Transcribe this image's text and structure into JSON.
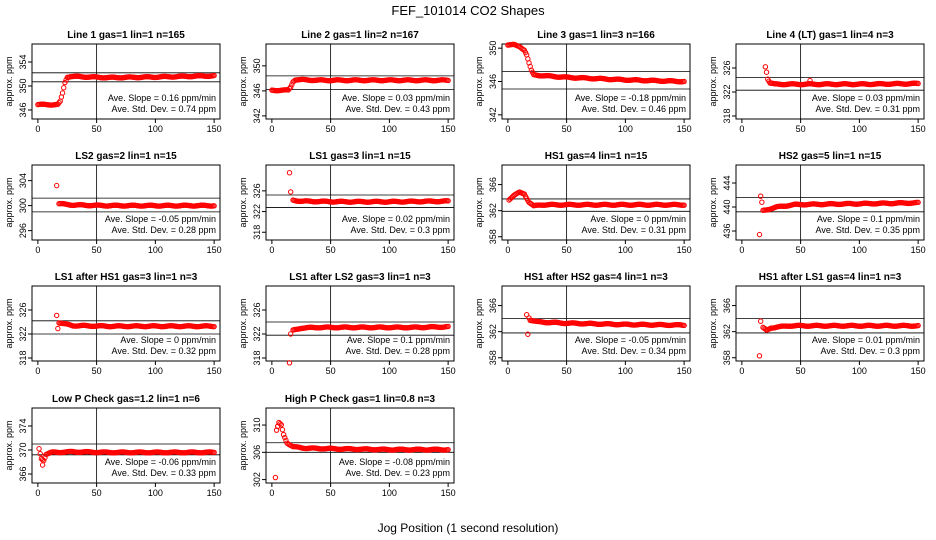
{
  "figure": {
    "title": "FEF_101014  CO2 Shapes",
    "xlabel": "Jog Position (1 second resolution)",
    "colors": {
      "points": "#ff0000",
      "axes": "#000000",
      "background": "#ffffff"
    }
  },
  "chart_data": [
    {
      "type": "scatter",
      "title": "Line 1 gas=1 lin=1 n=165",
      "ylabel": "approx. ppm",
      "xlim": [
        -5,
        155
      ],
      "ylim": [
        344.5,
        357
      ],
      "xticks": [
        0,
        50,
        100,
        150
      ],
      "yticks": [
        346,
        350,
        354
      ],
      "vline": 50,
      "hlines": [
        350.7,
        352.2
      ],
      "slope_text": "Ave. Slope = 0.16 ppm/min",
      "stddev_text": "Ave. Std. Dev. = 0.74 ppm",
      "shape": [
        [
          0,
          346.9
        ],
        [
          17,
          346.9
        ],
        [
          19,
          347.4
        ],
        [
          21,
          348.8
        ],
        [
          23,
          350.6
        ],
        [
          25,
          351.5
        ],
        [
          28,
          351.6
        ],
        [
          60,
          351.4
        ],
        [
          100,
          351.5
        ],
        [
          150,
          351.7
        ]
      ],
      "outliers": []
    },
    {
      "type": "scatter",
      "title": "Line 2 gas=1 lin=2 n=167",
      "ylabel": "approx. ppm",
      "xlim": [
        -5,
        155
      ],
      "ylim": [
        341.5,
        353.5
      ],
      "xticks": [
        0,
        50,
        100,
        150
      ],
      "yticks": [
        342,
        346,
        350
      ],
      "vline": 50,
      "hlines": [
        346.2,
        348.4
      ],
      "slope_text": "Ave. Slope = 0.03 ppm/min",
      "stddev_text": "Ave. Std. Dev. = 0.43 ppm",
      "shape": [
        [
          0,
          346.1
        ],
        [
          14,
          346.1
        ],
        [
          16,
          346.6
        ],
        [
          18,
          347.5
        ],
        [
          20,
          347.8
        ],
        [
          40,
          347.7
        ],
        [
          80,
          347.7
        ],
        [
          120,
          347.7
        ],
        [
          150,
          347.7
        ]
      ],
      "outliers": []
    },
    {
      "type": "scatter",
      "title": "Line 3 gas=1 lin=3 n=166",
      "ylabel": "approx. ppm",
      "xlim": [
        -5,
        155
      ],
      "ylim": [
        341.5,
        350.5
      ],
      "xticks": [
        0,
        50,
        100,
        150
      ],
      "yticks": [
        342,
        346,
        350
      ],
      "vline": 50,
      "hlines": [
        345.1,
        347.2
      ],
      "slope_text": "Ave. Slope = -0.18 ppm/min",
      "stddev_text": "Ave. Std. Dev. = 0.46 ppm",
      "shape": [
        [
          0,
          350.4
        ],
        [
          5,
          350.4
        ],
        [
          10,
          350.2
        ],
        [
          14,
          349.8
        ],
        [
          16,
          349.2
        ],
        [
          18,
          348.2
        ],
        [
          20,
          347.3
        ],
        [
          22,
          346.8
        ],
        [
          30,
          346.7
        ],
        [
          50,
          346.5
        ],
        [
          100,
          346.2
        ],
        [
          150,
          346.0
        ]
      ],
      "outliers": []
    },
    {
      "type": "scatter",
      "title": "Line 4 (LT) gas=1 lin=4 n=3",
      "ylabel": "approx. ppm",
      "xlim": [
        -5,
        155
      ],
      "ylim": [
        317.5,
        330
      ],
      "xticks": [
        0,
        50,
        100,
        150
      ],
      "yticks": [
        318,
        322,
        326
      ],
      "vline": 50,
      "hlines": [
        322.3,
        324.4
      ],
      "slope_text": "Ave. Slope = 0.03 ppm/min",
      "stddev_text": "Ave. Std. Dev. = 0.31 ppm",
      "shape": [
        [
          22,
          324.2
        ],
        [
          24,
          323.5
        ],
        [
          28,
          323.3
        ],
        [
          60,
          323.3
        ],
        [
          100,
          323.3
        ],
        [
          150,
          323.4
        ]
      ],
      "outliers": [
        [
          20,
          326.2
        ],
        [
          21,
          325.3
        ],
        [
          58,
          323.9
        ]
      ]
    },
    {
      "type": "scatter",
      "title": "LS2 gas=2 lin=1 n=15",
      "ylabel": "approx. ppm",
      "xlim": [
        -5,
        155
      ],
      "ylim": [
        294.5,
        306.5
      ],
      "xticks": [
        0,
        50,
        100,
        150
      ],
      "yticks": [
        296,
        300,
        304
      ],
      "vline": 50,
      "hlines": [
        299.0,
        301.2
      ],
      "slope_text": "Ave. Slope = -0.05 ppm/min",
      "stddev_text": "Ave. Std. Dev. = 0.28 ppm",
      "shape": [
        [
          18,
          300.3
        ],
        [
          30,
          300.1
        ],
        [
          60,
          300.0
        ],
        [
          100,
          300.0
        ],
        [
          150,
          300.0
        ]
      ],
      "outliers": [
        [
          16,
          303.2
        ]
      ]
    },
    {
      "type": "scatter",
      "title": "LS1 gas=3 lin=1 n=15",
      "ylabel": "approx. ppm",
      "xlim": [
        -5,
        155
      ],
      "ylim": [
        316.5,
        331
      ],
      "xticks": [
        0,
        50,
        100,
        150
      ],
      "yticks": [
        318,
        322,
        326
      ],
      "vline": 50,
      "hlines": [
        322.8,
        325.2
      ],
      "slope_text": "Ave. Slope = 0.02 ppm/min",
      "stddev_text": "Ave. Std. Dev. = 0.3 ppm",
      "shape": [
        [
          18,
          324.2
        ],
        [
          25,
          324.0
        ],
        [
          60,
          323.9
        ],
        [
          100,
          323.9
        ],
        [
          150,
          324.0
        ]
      ],
      "outliers": [
        [
          15,
          329.5
        ],
        [
          16,
          325.8
        ]
      ]
    },
    {
      "type": "scatter",
      "title": "HS1 gas=4 lin=1 n=15",
      "ylabel": "approx. ppm",
      "xlim": [
        -5,
        155
      ],
      "ylim": [
        357.5,
        369
      ],
      "xticks": [
        0,
        50,
        100,
        150
      ],
      "yticks": [
        358,
        362,
        366
      ],
      "vline": 50,
      "hlines": [
        361.9,
        363.8
      ],
      "slope_text": "Ave. Slope = 0 ppm/min",
      "stddev_text": "Ave. Std. Dev. = 0.31 ppm",
      "shape": [
        [
          1,
          363.7
        ],
        [
          5,
          364.3
        ],
        [
          10,
          364.8
        ],
        [
          14,
          364.6
        ],
        [
          18,
          363.3
        ],
        [
          22,
          362.7
        ],
        [
          28,
          362.9
        ],
        [
          60,
          362.9
        ],
        [
          100,
          362.9
        ],
        [
          150,
          362.9
        ]
      ],
      "outliers": []
    },
    {
      "type": "scatter",
      "title": "HS2 gas=5 lin=1 n=15",
      "ylabel": "approx. ppm",
      "xlim": [
        -5,
        155
      ],
      "ylim": [
        434.5,
        447
      ],
      "xticks": [
        0,
        50,
        100,
        150
      ],
      "yticks": [
        436,
        440,
        444
      ],
      "vline": 50,
      "hlines": [
        439.2,
        441.6
      ],
      "slope_text": "Ave. Slope = 0.1 ppm/min",
      "stddev_text": "Ave. Std. Dev. = 0.35 ppm",
      "shape": [
        [
          18,
          439.4
        ],
        [
          22,
          439.6
        ],
        [
          30,
          440.0
        ],
        [
          45,
          440.4
        ],
        [
          80,
          440.5
        ],
        [
          120,
          440.6
        ],
        [
          150,
          440.7
        ]
      ],
      "outliers": [
        [
          15,
          435.4
        ],
        [
          16,
          441.8
        ],
        [
          17,
          440.8
        ]
      ]
    },
    {
      "type": "scatter",
      "title": "LS1 after HS1 gas=3 lin=1 n=3",
      "ylabel": "approx. ppm",
      "xlim": [
        -5,
        155
      ],
      "ylim": [
        317.5,
        330
      ],
      "xticks": [
        0,
        50,
        100,
        150
      ],
      "yticks": [
        318,
        322,
        326
      ],
      "vline": 50,
      "hlines": [
        322.0,
        324.2
      ],
      "slope_text": "Ave. Slope = 0 ppm/min",
      "stddev_text": "Ave. Std. Dev. = 0.32 ppm",
      "shape": [
        [
          18,
          323.9
        ],
        [
          22,
          323.7
        ],
        [
          30,
          323.4
        ],
        [
          60,
          323.3
        ],
        [
          100,
          323.3
        ],
        [
          150,
          323.3
        ]
      ],
      "outliers": [
        [
          16,
          325.1
        ],
        [
          17,
          322.9
        ]
      ]
    },
    {
      "type": "scatter",
      "title": "LS1 after LS2 gas=3 lin=1 n=3",
      "ylabel": "approx. ppm",
      "xlim": [
        -5,
        155
      ],
      "ylim": [
        317.5,
        330
      ],
      "xticks": [
        0,
        50,
        100,
        150
      ],
      "yticks": [
        318,
        322,
        326
      ],
      "vline": 50,
      "hlines": [
        321.8,
        324.0
      ],
      "slope_text": "Ave. Slope = 0.1 ppm/min",
      "stddev_text": "Ave. Std. Dev. = 0.28 ppm",
      "shape": [
        [
          18,
          322.6
        ],
        [
          25,
          323.0
        ],
        [
          40,
          323.1
        ],
        [
          80,
          323.1
        ],
        [
          120,
          323.1
        ],
        [
          150,
          323.2
        ]
      ],
      "outliers": [
        [
          15,
          317.2
        ],
        [
          16,
          322.0
        ]
      ]
    },
    {
      "type": "scatter",
      "title": "HS1 after HS2 gas=4 lin=1 n=3",
      "ylabel": "approx. ppm",
      "xlim": [
        -5,
        155
      ],
      "ylim": [
        357.5,
        369
      ],
      "xticks": [
        0,
        50,
        100,
        150
      ],
      "yticks": [
        358,
        362,
        366
      ],
      "vline": 50,
      "hlines": [
        361.8,
        364.0
      ],
      "slope_text": "Ave. Slope = -0.05 ppm/min",
      "stddev_text": "Ave. Std. Dev. = 0.34 ppm",
      "shape": [
        [
          19,
          363.8
        ],
        [
          25,
          363.5
        ],
        [
          50,
          363.3
        ],
        [
          100,
          363.1
        ],
        [
          150,
          363.0
        ]
      ],
      "outliers": [
        [
          16,
          364.6
        ],
        [
          17,
          361.6
        ],
        [
          18,
          364.1
        ]
      ]
    },
    {
      "type": "scatter",
      "title": "HS1 after LS1 gas=4 lin=1 n=3",
      "ylabel": "approx. ppm",
      "xlim": [
        -5,
        155
      ],
      "ylim": [
        357.5,
        369
      ],
      "xticks": [
        0,
        50,
        100,
        150
      ],
      "yticks": [
        358,
        362,
        366
      ],
      "vline": 50,
      "hlines": [
        361.8,
        364.0
      ],
      "slope_text": "Ave. Slope = 0.01 ppm/min",
      "stddev_text": "Ave. Std. Dev. = 0.3 ppm",
      "shape": [
        [
          18,
          362.6
        ],
        [
          21,
          362.2
        ],
        [
          25,
          362.6
        ],
        [
          40,
          362.9
        ],
        [
          80,
          362.9
        ],
        [
          120,
          362.9
        ],
        [
          150,
          362.9
        ]
      ],
      "outliers": [
        [
          15,
          358.3
        ],
        [
          16,
          363.6
        ]
      ]
    },
    {
      "type": "scatter",
      "title": "Low P Check gas=1.2 lin=1 n=6",
      "ylabel": "approx. ppm",
      "xlim": [
        -5,
        155
      ],
      "ylim": [
        364.5,
        377
      ],
      "xticks": [
        0,
        50,
        100,
        150
      ],
      "yticks": [
        366,
        370,
        374
      ],
      "vline": 50,
      "hlines": [
        369.2,
        371.0
      ],
      "slope_text": "Ave. Slope = -0.06 ppm/min",
      "stddev_text": "Ave. Std. Dev. = 0.33 ppm",
      "shape": [
        [
          1,
          370.2
        ],
        [
          2,
          369.4
        ],
        [
          3,
          368.6
        ],
        [
          5,
          368.3
        ],
        [
          7,
          369.3
        ],
        [
          12,
          369.6
        ],
        [
          30,
          369.7
        ],
        [
          60,
          369.6
        ],
        [
          100,
          369.6
        ],
        [
          150,
          369.6
        ]
      ],
      "outliers": [
        [
          4,
          367.5
        ]
      ]
    },
    {
      "type": "scatter",
      "title": "High P Check gas=1 lin=0.8 n=3",
      "ylabel": "approx. ppm",
      "xlim": [
        -5,
        155
      ],
      "ylim": [
        301.5,
        312.5
      ],
      "xticks": [
        0,
        50,
        100,
        150
      ],
      "yticks": [
        302,
        306,
        310
      ],
      "vline": 50,
      "hlines": [
        306.0,
        307.4
      ],
      "slope_text": "Ave. Slope = -0.08 ppm/min",
      "stddev_text": "Ave. Std. Dev. = 0.23 ppm",
      "shape": [
        [
          4,
          309.2
        ],
        [
          6,
          310.3
        ],
        [
          8,
          310.0
        ],
        [
          10,
          308.6
        ],
        [
          13,
          307.4
        ],
        [
          18,
          306.8
        ],
        [
          30,
          306.6
        ],
        [
          60,
          306.5
        ],
        [
          100,
          306.4
        ],
        [
          150,
          306.4
        ]
      ],
      "outliers": [
        [
          3,
          302.3
        ],
        [
          5,
          309.8
        ]
      ]
    }
  ]
}
